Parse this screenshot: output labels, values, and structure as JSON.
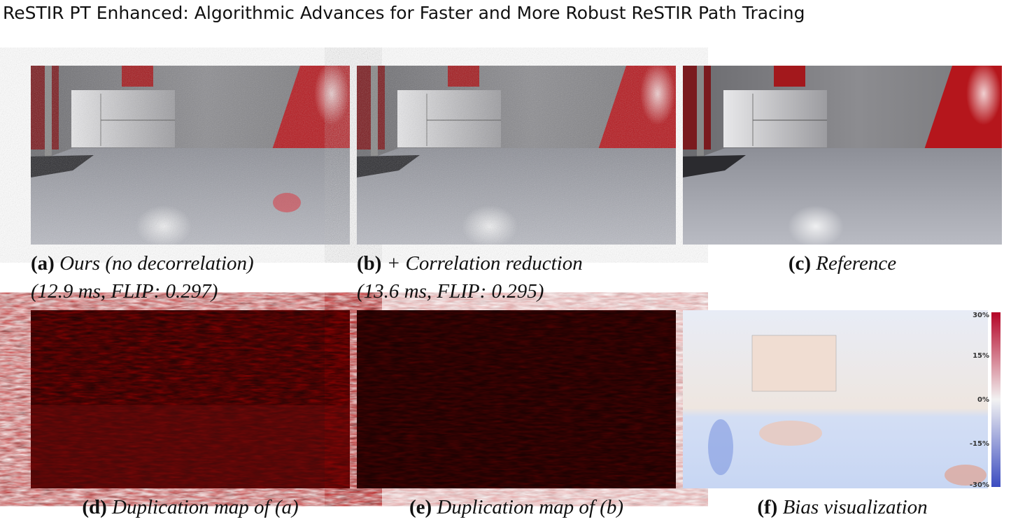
{
  "header": {
    "title": "ReSTIR PT Enhanced: Algorithmic Advances for Faster and More Robust ReSTIR Path Tracing"
  },
  "panels": [
    {
      "label": "(a)",
      "caption": "Ours (no decorrelation)",
      "detail": "(12.9 ms, FLIP: 0.297)"
    },
    {
      "label": "(b)",
      "caption": "+ Correlation reduction",
      "detail": "(13.6 ms, FLIP: 0.295)"
    },
    {
      "label": "(c)",
      "caption": "Reference"
    },
    {
      "label": "(d)",
      "caption": "Duplication map of (a)"
    },
    {
      "label": "(e)",
      "caption": "Duplication map of (b)"
    },
    {
      "label": "(f)",
      "caption": "Bias visualization"
    }
  ],
  "colorbar": {
    "ticks": [
      "30%",
      "15%",
      "0%",
      "-15%",
      "-30%"
    ]
  }
}
